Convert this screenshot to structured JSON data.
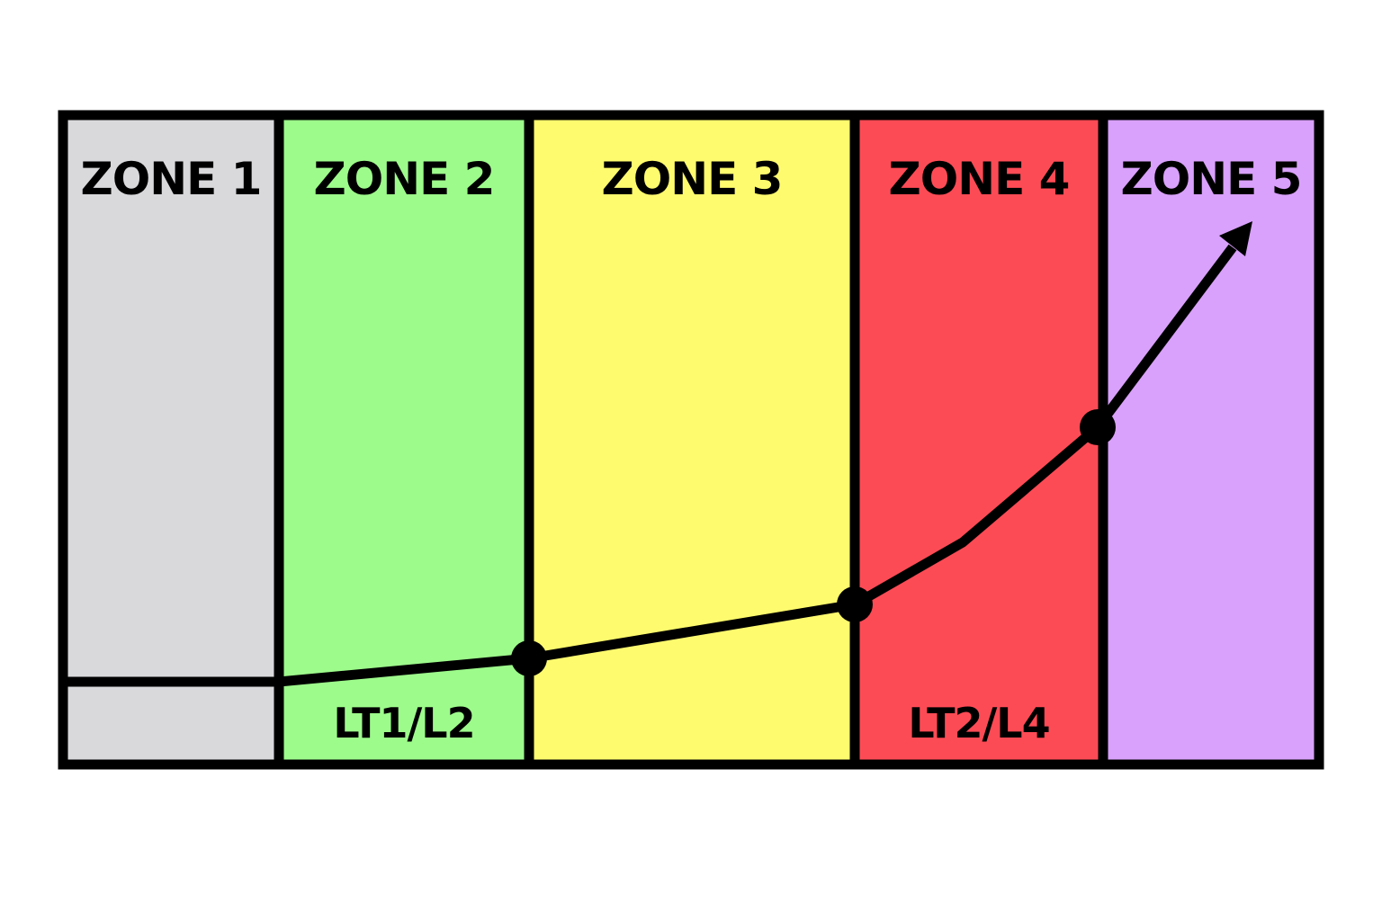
{
  "zones": [
    {
      "label": "ZONE 1",
      "color": "#d9d9dc",
      "threshold_label": ""
    },
    {
      "label": "ZONE 2",
      "color": "#9dfb8b",
      "threshold_label": "LT1/L2"
    },
    {
      "label": "ZONE 3",
      "color": "#fffb6e",
      "threshold_label": ""
    },
    {
      "label": "ZONE 4",
      "color": "#fd4b55",
      "threshold_label": "LT2/L4"
    },
    {
      "label": "ZONE 5",
      "color": "#d9a1fb",
      "threshold_label": ""
    }
  ],
  "line_color": "#000000",
  "marker_icon": "arrow-head-icon"
}
